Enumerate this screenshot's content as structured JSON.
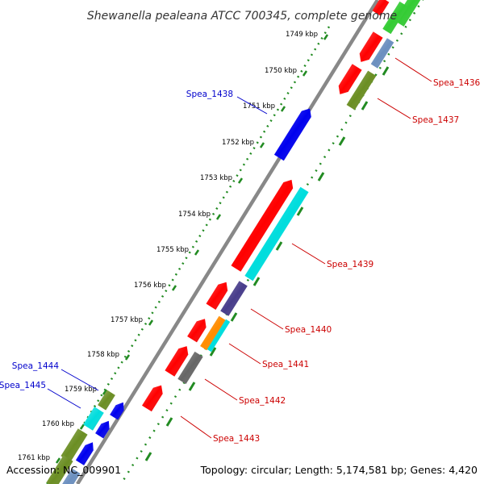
{
  "title": "Shewanella pealeana ATCC 700345, complete genome",
  "footer": {
    "accession": "Accession: NC_009901",
    "summary": "Topology: circular; Length: 5,174,581 bp; Genes: 4,420"
  },
  "ticks": [
    {
      "label": "1749 kbp"
    },
    {
      "label": "1750 kbp"
    },
    {
      "label": "1751 kbp"
    },
    {
      "label": "1752 kbp"
    },
    {
      "label": "1753 kbp"
    },
    {
      "label": "1754 kbp"
    },
    {
      "label": "1755 kbp"
    },
    {
      "label": "1756 kbp"
    },
    {
      "label": "1757 kbp"
    },
    {
      "label": "1758 kbp"
    },
    {
      "label": "1759 kbp"
    },
    {
      "label": "1760 kbp"
    },
    {
      "label": "1761 kbp"
    }
  ],
  "gene_labels": [
    {
      "text": "Spea_1436",
      "color": "#cc0000"
    },
    {
      "text": "Spea_1437",
      "color": "#cc0000"
    },
    {
      "text": "Spea_1438",
      "color": "#0000cc"
    },
    {
      "text": "Spea_1439",
      "color": "#cc0000"
    },
    {
      "text": "Spea_1440",
      "color": "#cc0000"
    },
    {
      "text": "Spea_1441",
      "color": "#cc0000"
    },
    {
      "text": "Spea_1442",
      "color": "#cc0000"
    },
    {
      "text": "Spea_1443",
      "color": "#cc0000"
    },
    {
      "text": "Spea_1444",
      "color": "#0000cc"
    },
    {
      "text": "Spea_1445",
      "color": "#0000cc"
    }
  ],
  "colors": {
    "red": "#ff0000",
    "blue": "#0000ee",
    "cyan": "#00dddd",
    "olive": "#6b8e23",
    "purple": "#483d8b",
    "orange": "#ff8c00",
    "gray": "#666666",
    "green": "#33cc33",
    "steel": "#6b8fbf",
    "tick_green": "#228b22",
    "backbone": "#888888"
  }
}
